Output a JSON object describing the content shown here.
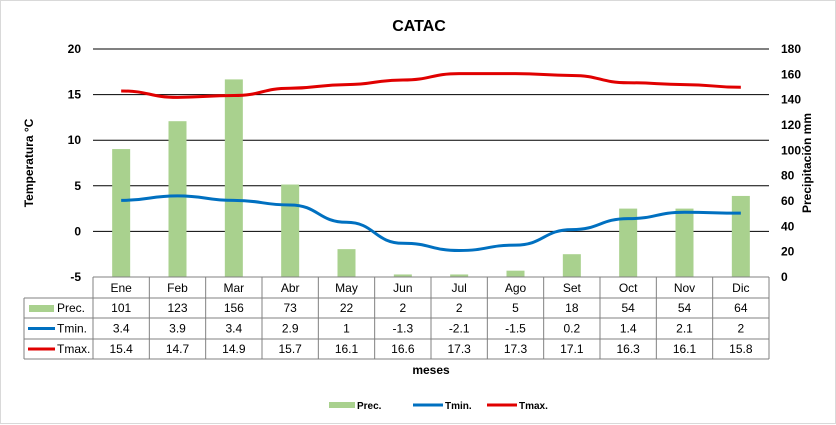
{
  "chart_data": {
    "type": "bar+line",
    "title": "CATAC",
    "xlabel": "meses",
    "ylabel_left": "Temperatura °C",
    "ylabel_right": "Precipitación mm",
    "ylim_left": [
      -5,
      20
    ],
    "yticks_left": [
      -5,
      0,
      5,
      10,
      15,
      20
    ],
    "ylim_right": [
      0,
      180
    ],
    "yticks_right": [
      0,
      20,
      40,
      60,
      80,
      100,
      120,
      140,
      160,
      180
    ],
    "categories": [
      "Ene",
      "Feb",
      "Mar",
      "Abr",
      "May",
      "Jun",
      "Jul",
      "Ago",
      "Set",
      "Oct",
      "Nov",
      "Dic"
    ],
    "series": [
      {
        "name": "Prec.",
        "type": "bar",
        "axis": "right",
        "color": "#a9d18e",
        "values": [
          101,
          123,
          156,
          73,
          22,
          2,
          2,
          5,
          18,
          54,
          54,
          64
        ]
      },
      {
        "name": "Tmin.",
        "type": "line",
        "axis": "left",
        "color": "#0070c0",
        "values": [
          3.4,
          3.9,
          3.4,
          2.9,
          1,
          -1.3,
          -2.1,
          -1.5,
          0.2,
          1.4,
          2.1,
          2
        ]
      },
      {
        "name": "Tmax.",
        "type": "line",
        "axis": "left",
        "color": "#e00000",
        "values": [
          15.4,
          14.7,
          14.9,
          15.7,
          16.1,
          16.6,
          17.3,
          17.3,
          17.1,
          16.3,
          16.1,
          15.8
        ]
      }
    ],
    "grid": true,
    "legend": "bottom"
  }
}
